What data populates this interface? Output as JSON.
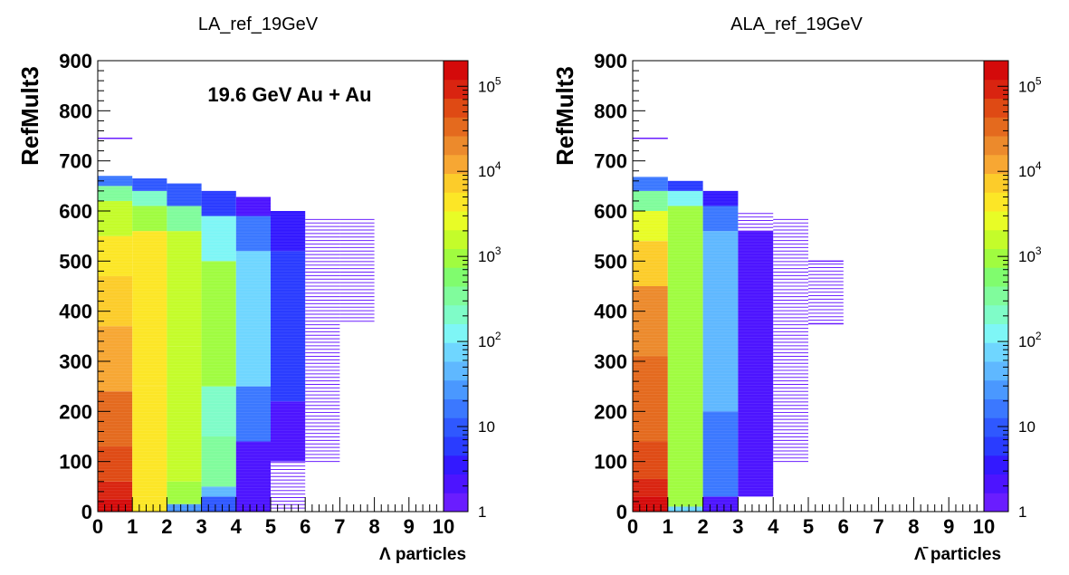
{
  "chart_data": [
    {
      "type": "heatmap",
      "title": "LA_ref_19GeV",
      "xlabel": "Λ particles",
      "ylabel": "RefMult3",
      "annotation": "19.6 GeV Au + Au",
      "xlim": [
        0,
        10
      ],
      "ylim": [
        0,
        900
      ],
      "x_ticks": [
        "0",
        "1",
        "2",
        "3",
        "4",
        "5",
        "6",
        "7",
        "8",
        "9",
        "10"
      ],
      "y_ticks": [
        "0",
        "100",
        "200",
        "300",
        "400",
        "500",
        "600",
        "700",
        "800",
        "900"
      ],
      "color_scale": "log",
      "z_range": [
        1,
        200000
      ],
      "z_tick_labels": [
        "1",
        "10",
        "10^2",
        "10^3",
        "10^4",
        "10^5"
      ],
      "columns": [
        {
          "x": 0,
          "y_max": 670,
          "z_bands": [
            [
              0,
              25,
              180000
            ],
            [
              25,
              60,
              100000
            ],
            [
              60,
              130,
              60000
            ],
            [
              130,
              240,
              30000
            ],
            [
              240,
              370,
              15000
            ],
            [
              370,
              470,
              9000
            ],
            [
              470,
              550,
              5000
            ],
            [
              550,
              620,
              1800
            ],
            [
              620,
              650,
              300
            ],
            [
              650,
              670,
              20
            ]
          ],
          "outlier_y": [
            745
          ]
        },
        {
          "x": 1,
          "y_max": 665,
          "z_bands": [
            [
              0,
              30,
              4000
            ],
            [
              30,
              250,
              5000
            ],
            [
              250,
              560,
              3500
            ],
            [
              560,
              610,
              1200
            ],
            [
              610,
              640,
              200
            ],
            [
              640,
              665,
              8
            ]
          ]
        },
        {
          "x": 2,
          "y_max": 655,
          "z_bands": [
            [
              0,
              15,
              25
            ],
            [
              15,
              60,
              800
            ],
            [
              60,
              330,
              2000
            ],
            [
              330,
              560,
              1500
            ],
            [
              560,
              610,
              400
            ],
            [
              610,
              655,
              10
            ]
          ]
        },
        {
          "x": 3,
          "y_max": 640,
          "z_bands": [
            [
              0,
              30,
              12
            ],
            [
              30,
              50,
              40
            ],
            [
              50,
              150,
              400
            ],
            [
              150,
              250,
              250
            ],
            [
              250,
              500,
              800
            ],
            [
              500,
              590,
              100
            ],
            [
              590,
              640,
              6
            ]
          ]
        },
        {
          "x": 4,
          "y_max": 628,
          "z_bands": [
            [
              0,
              140,
              2
            ],
            [
              140,
              250,
              20
            ],
            [
              250,
              520,
              80
            ],
            [
              520,
              590,
              15
            ],
            [
              590,
              628,
              2
            ]
          ]
        },
        {
          "x": 5,
          "y_max": 600,
          "z_bands": [
            [
              0,
              100,
              1
            ],
            [
              100,
              220,
              2
            ],
            [
              220,
              520,
              6
            ],
            [
              520,
              600,
              3
            ]
          ]
        },
        {
          "x": 6,
          "y_max": 590,
          "z_bands": [
            [
              100,
              590,
              1
            ]
          ]
        },
        {
          "x": 7,
          "y_max": 590,
          "z_bands": [
            [
              380,
              590,
              1
            ]
          ]
        }
      ]
    },
    {
      "type": "heatmap",
      "title": "ALA_ref_19GeV",
      "xlabel": "Λ̄ particles",
      "ylabel": "RefMult3",
      "xlim": [
        0,
        10
      ],
      "ylim": [
        0,
        900
      ],
      "x_ticks": [
        "0",
        "1",
        "2",
        "3",
        "4",
        "5",
        "6",
        "7",
        "8",
        "9",
        "10"
      ],
      "y_ticks": [
        "0",
        "100",
        "200",
        "300",
        "400",
        "500",
        "600",
        "700",
        "800",
        "900"
      ],
      "color_scale": "log",
      "z_range": [
        1,
        200000
      ],
      "z_tick_labels": [
        "1",
        "10",
        "10^2",
        "10^3",
        "10^4",
        "10^5"
      ],
      "columns": [
        {
          "x": 0,
          "y_max": 668,
          "z_bands": [
            [
              0,
              30,
              190000
            ],
            [
              30,
              65,
              110000
            ],
            [
              65,
              140,
              65000
            ],
            [
              140,
              310,
              35000
            ],
            [
              310,
              450,
              18000
            ],
            [
              450,
              540,
              8000
            ],
            [
              540,
              600,
              2500
            ],
            [
              600,
              640,
              400
            ],
            [
              640,
              668,
              20
            ]
          ],
          "outlier_y": [
            745
          ]
        },
        {
          "x": 1,
          "y_max": 660,
          "z_bands": [
            [
              0,
              10,
              60
            ],
            [
              10,
              610,
              1000
            ],
            [
              610,
              640,
              150
            ],
            [
              640,
              660,
              6
            ]
          ]
        },
        {
          "x": 2,
          "y_max": 640,
          "z_bands": [
            [
              0,
              30,
              2
            ],
            [
              30,
              200,
              15
            ],
            [
              200,
              560,
              50
            ],
            [
              560,
              610,
              20
            ],
            [
              610,
              640,
              3
            ]
          ]
        },
        {
          "x": 3,
          "y_max": 600,
          "z_bands": [
            [
              30,
              560,
              2
            ],
            [
              560,
              600,
              1
            ]
          ]
        },
        {
          "x": 4,
          "y_max": 588,
          "z_bands": [
            [
              100,
              588,
              1
            ]
          ]
        },
        {
          "x": 5,
          "y_max": 500,
          "z_bands": [
            [
              375,
              500,
              1
            ]
          ],
          "outlier_y": [
            375,
            500
          ]
        }
      ]
    }
  ]
}
